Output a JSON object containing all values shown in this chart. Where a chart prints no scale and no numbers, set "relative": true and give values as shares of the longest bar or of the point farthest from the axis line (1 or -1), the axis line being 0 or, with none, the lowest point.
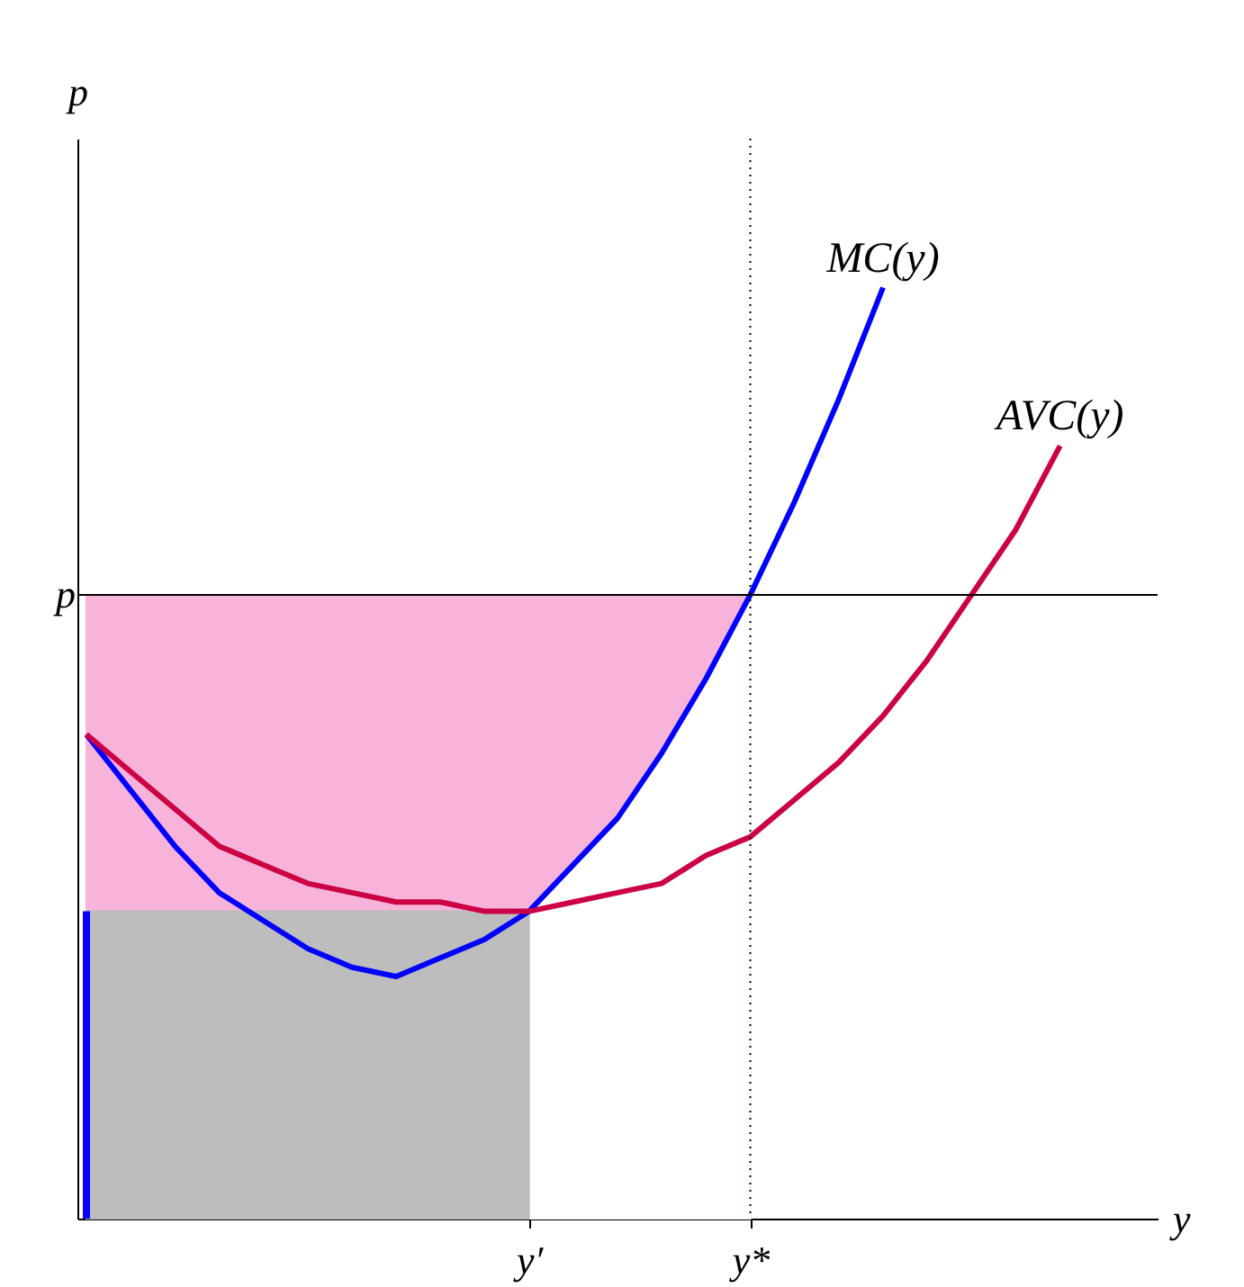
{
  "chart_data": {
    "type": "line",
    "relative": true,
    "xlabel": "y",
    "ylabel": "p",
    "categories": [
      null,
      null,
      null,
      null,
      null,
      null,
      null,
      null,
      null,
      null,
      "y′",
      null,
      null,
      null,
      null,
      "y*",
      null,
      null,
      null,
      null,
      null,
      null,
      null,
      null,
      null
    ],
    "grid": false,
    "legend": false,
    "marker": "none",
    "line_style": "solid",
    "series": [
      {
        "type": "area",
        "color": "#f7b3d9",
        "values": [
          0.67,
          0.67,
          0.67,
          0.67,
          0.67,
          0.67,
          0.67,
          0.67,
          0.67,
          0.67,
          0.67,
          0.67,
          0.67,
          0.67,
          0.67,
          0.67,
          null,
          null,
          null,
          null,
          null,
          null,
          null,
          null,
          null
        ]
      },
      {
        "type": "area",
        "color": "#ffffff",
        "values": [
          null,
          null,
          null,
          null,
          null,
          null,
          null,
          null,
          null,
          null,
          0.33,
          0.38,
          0.43,
          0.5,
          0.58,
          0.67,
          null,
          null,
          null,
          null,
          null,
          null,
          null,
          null,
          null
        ]
      },
      {
        "type": "area",
        "color": "#bdbdbd",
        "values": [
          0.33,
          0.33,
          0.33,
          0.33,
          0.33,
          0.33,
          0.33,
          0.33,
          0.33,
          0.33,
          0.33,
          null,
          null,
          null,
          null,
          null,
          null,
          null,
          null,
          null,
          null,
          null,
          null,
          null,
          null
        ]
      },
      {
        "type": "bar",
        "color": "#0000ff",
        "values": [
          0.33,
          null,
          null,
          null,
          null,
          null,
          null,
          null,
          null,
          null,
          null,
          null,
          null,
          null,
          null,
          null,
          null,
          null,
          null,
          null,
          null,
          null,
          null,
          null,
          null
        ]
      },
      {
        "name": "MC(y)",
        "color": "#0000ff",
        "values": [
          0.52,
          0.46,
          0.4,
          0.35,
          0.32,
          0.29,
          0.27,
          0.26,
          0.28,
          0.3,
          0.33,
          0.38,
          0.43,
          0.5,
          0.58,
          0.67,
          0.77,
          0.88,
          1,
          null,
          null,
          null,
          null,
          null,
          null
        ]
      },
      {
        "name": "AVC(y)",
        "color": "#cc0044",
        "values": [
          0.52,
          0.48,
          0.44,
          0.4,
          0.38,
          0.36,
          0.35,
          0.34,
          0.34,
          0.33,
          0.33,
          0.34,
          0.35,
          0.36,
          0.39,
          0.41,
          0.45,
          0.49,
          0.54,
          0.6,
          0.67,
          0.74,
          0.83,
          null,
          null
        ]
      }
    ],
    "ref_lines": [
      {
        "axis": "y",
        "value": 0.67,
        "label": "p",
        "color": "#000000",
        "line_style": "solid"
      },
      {
        "axis": "x",
        "value": "y*",
        "color": "#000000",
        "line_style": "dotted"
      }
    ]
  }
}
